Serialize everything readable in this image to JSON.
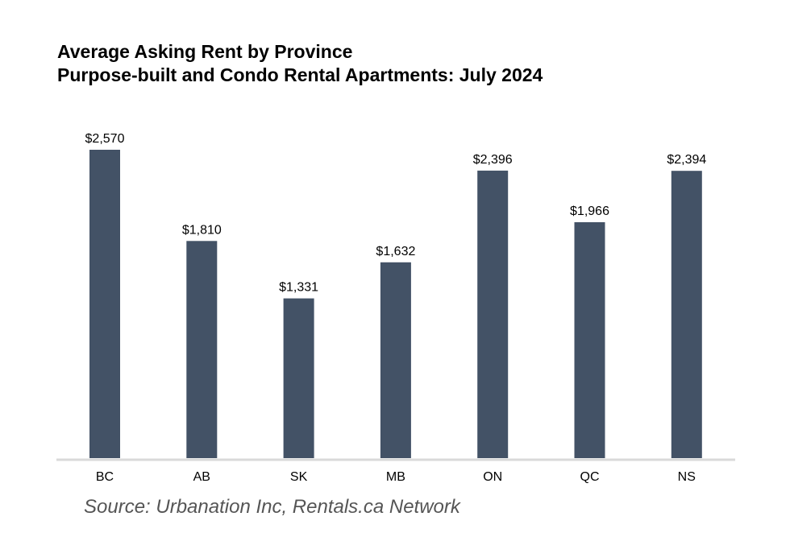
{
  "chart_data": {
    "type": "bar",
    "title": "Average Asking Rent by Province",
    "subtitle": "Purpose-built and Condo Rental Apartments: July 2024",
    "categories": [
      "BC",
      "AB",
      "SK",
      "MB",
      "ON",
      "QC",
      "NS"
    ],
    "values": [
      2570,
      1810,
      1331,
      1632,
      2396,
      1966,
      2394
    ],
    "data_labels": [
      "$2,570",
      "$1,810",
      "$1,331",
      "$1,632",
      "$2,396",
      "$1,966",
      "$2,394"
    ],
    "xlabel": "",
    "ylabel": "",
    "ylim": [
      0,
      2570
    ],
    "grid": false,
    "legend": "none"
  },
  "source": "Source: Urbanation Inc, Rentals.ca Network",
  "colors": {
    "bar": "#435266",
    "axis": "#d9d9d9",
    "source_text": "#555555"
  }
}
